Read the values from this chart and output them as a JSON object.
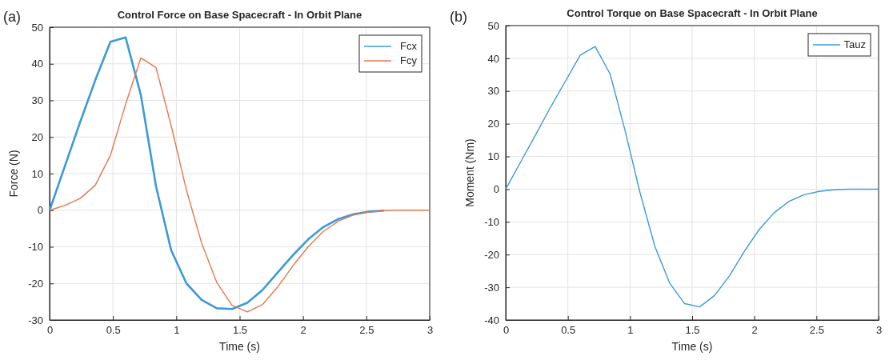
{
  "chart_data": [
    {
      "type": "line",
      "title": "Control Force on Base Spacecraft - In Orbit Plane",
      "xlabel": "Time (s)",
      "ylabel": "Force (N)",
      "annotations": [
        "(a)"
      ],
      "x": [
        0,
        0.12,
        0.24,
        0.36,
        0.48,
        0.6,
        0.72,
        0.84,
        0.96,
        1.08,
        1.2,
        1.32,
        1.44,
        1.56,
        1.68,
        1.8,
        1.92,
        2.04,
        2.16,
        2.28,
        2.4,
        2.52,
        2.64,
        2.76,
        2.88,
        3
      ],
      "series": [
        {
          "name": "Fcx",
          "color": "#3c9ad6",
          "values": [
            0,
            12,
            24,
            35.5,
            46,
            47.2,
            31.5,
            6.5,
            -11,
            -20,
            -24.5,
            -26.8,
            -27,
            -25.3,
            -21.8,
            -17,
            -12.3,
            -8,
            -4.6,
            -2.4,
            -1.1,
            -0.4,
            -0.1,
            null,
            null,
            null
          ]
        },
        {
          "name": "Fcy",
          "color": "#e5774a",
          "values": [
            0,
            1.3,
            3.2,
            6.8,
            15,
            29,
            41.6,
            39,
            23,
            5.5,
            -9,
            -19.8,
            -26,
            -27.8,
            -25.8,
            -21,
            -15.2,
            -10,
            -5.8,
            -3,
            -1.3,
            -0.5,
            -0.1,
            0,
            0,
            0
          ]
        }
      ],
      "xlim": [
        0,
        3
      ],
      "xticks": [
        0,
        0.5,
        1,
        1.5,
        2,
        2.5,
        3
      ],
      "ylim": [
        -30,
        50
      ],
      "yticks": [
        -30,
        -20,
        -10,
        0,
        10,
        20,
        30,
        40,
        50
      ],
      "grid": true,
      "legend": "top right"
    },
    {
      "type": "line",
      "title": "Control Torque on Base Spacecraft - In Orbit Plane",
      "xlabel": "Time (s)",
      "ylabel": "Moment (Nm)",
      "annotations": [
        "(b)"
      ],
      "x": [
        0,
        0.12,
        0.24,
        0.36,
        0.48,
        0.6,
        0.72,
        0.84,
        0.96,
        1.08,
        1.2,
        1.32,
        1.44,
        1.56,
        1.68,
        1.8,
        1.92,
        2.04,
        2.16,
        2.28,
        2.4,
        2.52,
        2.64,
        2.76,
        2.88,
        3
      ],
      "series": [
        {
          "name": "Tauz",
          "color": "#3c9ad6",
          "values": [
            0,
            8.3,
            16.6,
            25,
            33,
            41,
            43.6,
            35.2,
            18,
            -1,
            -17.5,
            -28.8,
            -35,
            -36,
            -32.5,
            -26.5,
            -19,
            -12.3,
            -7.2,
            -3.7,
            -1.7,
            -0.7,
            -0.2,
            0,
            0,
            0
          ]
        }
      ],
      "xlim": [
        0,
        3
      ],
      "xticks": [
        0,
        0.5,
        1,
        1.5,
        2,
        2.5,
        3
      ],
      "ylim": [
        -40,
        50
      ],
      "yticks": [
        -40,
        -30,
        -20,
        -10,
        0,
        10,
        20,
        30,
        40,
        50
      ],
      "grid": true,
      "legend": "top right"
    }
  ]
}
